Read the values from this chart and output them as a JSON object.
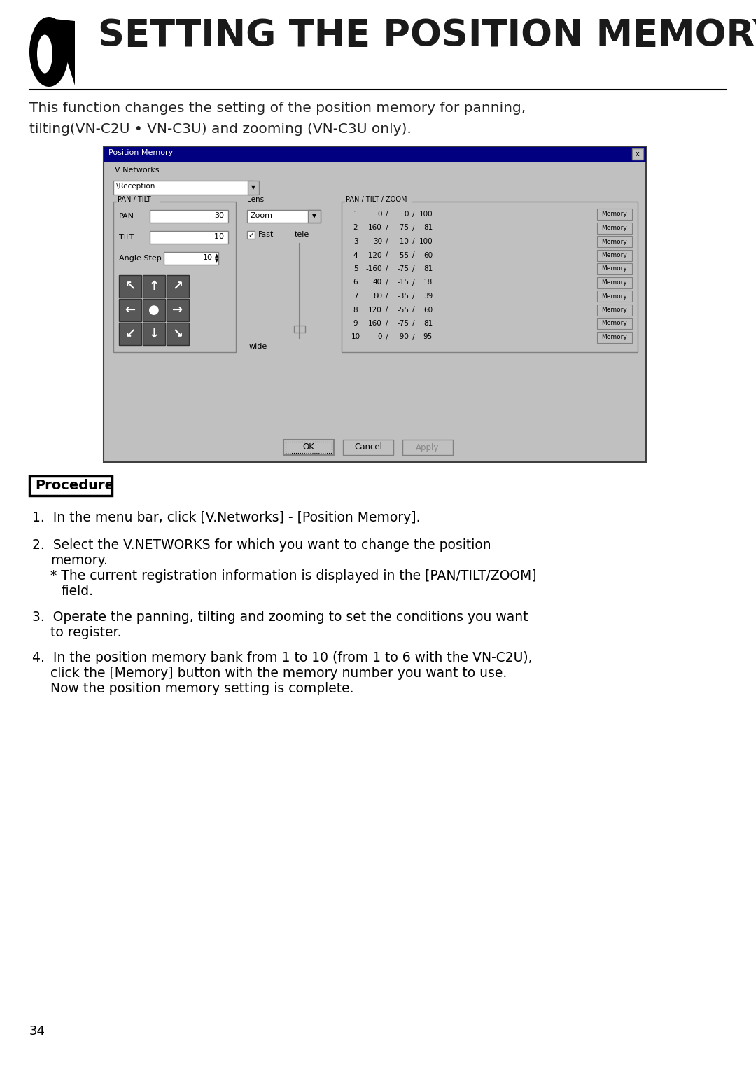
{
  "title": "SETTING THE POSITION MEMORY",
  "bg_color": "#ffffff",
  "intro_line1": "This function changes the setting of the position memory for panning,",
  "intro_line2": "tilting(VN-C2U • VN-C3U) and zooming (VN-C3U only).",
  "procedure_label": "Procedure",
  "page_number": "34",
  "dialog_title": "Position Memory",
  "vnetworks_label": "V Networks",
  "dropdown_text": "\\Reception",
  "pan_tilt_label": "PAN / TILT",
  "lens_label": "Lens",
  "pan_tilt_zoom_label": "PAN / TILT / ZOOM",
  "pan_label": "PAN",
  "pan_value": "30",
  "tilt_label": "TILT",
  "tilt_value": "-10",
  "angle_step_label": "Angle Step",
  "angle_step_value": "10",
  "zoom_dropdown": "Zoom",
  "fast_check": "☑ Fast",
  "tele_label": "tele",
  "wide_label": "wide",
  "memory_rows": [
    [
      1,
      "0",
      "0",
      "100"
    ],
    [
      2,
      "160",
      "-75",
      "81"
    ],
    [
      3,
      "30",
      "-10",
      "100"
    ],
    [
      4,
      "-120",
      "-55",
      "60"
    ],
    [
      5,
      "-160",
      "-75",
      "81"
    ],
    [
      6,
      "40",
      "-15",
      "18"
    ],
    [
      7,
      "80",
      "-35",
      "39"
    ],
    [
      8,
      "120",
      "-55",
      "60"
    ],
    [
      9,
      "160",
      "-75",
      "81"
    ],
    [
      10,
      "0",
      "-90",
      "95"
    ]
  ],
  "step1": "In the menu bar, click [V.Networks] - [Position Memory].",
  "step2a": "Select the V.NETWORKS for which you want to change the position",
  "step2b": "memory.",
  "step2c": "* The current registration information is displayed in the [PAN/TILT/ZOOM]",
  "step2d": "  field.",
  "step3a": "Operate the panning, tilting and zooming to set the conditions you want",
  "step3b": "to register.",
  "step4a": "In the position memory bank from 1 to 10 (from 1 to 6 with the VN-C2U),",
  "step4b": "click the [Memory] button with the memory number you want to use.",
  "step4c": "Now the position memory setting is complete.",
  "dialog_bg": "#c0c0c0",
  "titlebar_bg": "#000080",
  "white": "#ffffff",
  "gray_border": "#808080",
  "dark_btn": "#707070",
  "text_gray": "#808080"
}
